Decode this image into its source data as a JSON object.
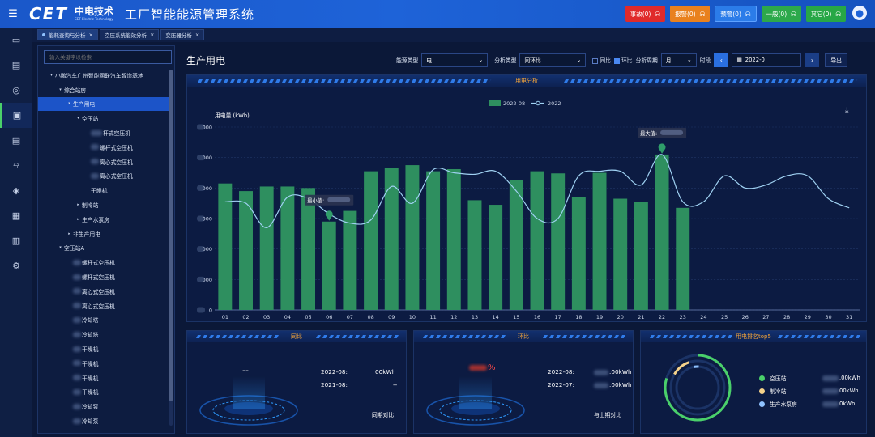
{
  "header": {
    "logo_mark": "CET",
    "logo_cn": "中电技术",
    "logo_en": "CET Electric Technology",
    "title": "工厂智能能源管理系统",
    "alarms": [
      {
        "label": "事故(0)",
        "color": "#e02a2a"
      },
      {
        "label": "报警(0)",
        "color": "#e9811e"
      },
      {
        "label": "预警(0)",
        "color": "#2b7ce9"
      },
      {
        "label": "一般(0)",
        "color": "#2da94b"
      },
      {
        "label": "其它(0)",
        "color": "#27a746"
      }
    ]
  },
  "tabs": [
    {
      "label": "能耗查询与分析"
    },
    {
      "label": "空压系统能效分析"
    },
    {
      "label": "变压器分析"
    }
  ],
  "tree": {
    "search_placeholder": "输入关键字以检索",
    "nodes": [
      {
        "label": "小鹏汽车广州智能网联汽车智造基地",
        "indent": 0,
        "arrow": "▾"
      },
      {
        "label": "综合站房",
        "indent": 1,
        "arrow": "▾"
      },
      {
        "label": "生产用电",
        "indent": 2,
        "arrow": "▾",
        "selected": true
      },
      {
        "label": "空压站",
        "indent": 3,
        "arrow": "▾"
      },
      {
        "label": "杆式空压机",
        "indent": 4,
        "arrow": "",
        "blur": 14
      },
      {
        "label": "螺杆式空压机",
        "indent": 4,
        "arrow": "",
        "blur": 10
      },
      {
        "label": "离心式空压机",
        "indent": 4,
        "arrow": "",
        "blur": 10
      },
      {
        "label": "离心式空压机",
        "indent": 4,
        "arrow": "",
        "blur": 10
      },
      {
        "label": "干燥机",
        "indent": 4,
        "arrow": ""
      },
      {
        "label": "制冷站",
        "indent": 3,
        "arrow": "▸"
      },
      {
        "label": "生产水泵房",
        "indent": 3,
        "arrow": "▸"
      },
      {
        "label": "非生产用电",
        "indent": 2,
        "arrow": "▸"
      },
      {
        "label": "空压站A",
        "indent": 1,
        "arrow": "▾"
      },
      {
        "label": "螺杆式空压机",
        "indent": 2,
        "arrow": "",
        "blur": 10
      },
      {
        "label": "螺杆式空压机",
        "indent": 2,
        "arrow": "",
        "blur": 10
      },
      {
        "label": "离心式空压机",
        "indent": 2,
        "arrow": "",
        "blur": 10
      },
      {
        "label": "离心式空压机",
        "indent": 2,
        "arrow": "",
        "blur": 10
      },
      {
        "label": "冷却塔",
        "indent": 2,
        "arrow": "",
        "blur": 10
      },
      {
        "label": "冷却塔",
        "indent": 2,
        "arrow": "",
        "blur": 10
      },
      {
        "label": "干燥机",
        "indent": 2,
        "arrow": "",
        "blur": 10
      },
      {
        "label": "干燥机",
        "indent": 2,
        "arrow": "",
        "blur": 10
      },
      {
        "label": "干燥机",
        "indent": 2,
        "arrow": "",
        "blur": 10
      },
      {
        "label": "干燥机",
        "indent": 2,
        "arrow": "",
        "blur": 10
      },
      {
        "label": "冷却泵",
        "indent": 2,
        "arrow": "",
        "blur": 10
      },
      {
        "label": "冷却泵",
        "indent": 2,
        "arrow": "",
        "blur": 10
      }
    ]
  },
  "main": {
    "title": "生产用电",
    "toolbar": {
      "energy_type_label": "能源类型",
      "energy_type_value": "电",
      "analysis_type_label": "分析类型",
      "analysis_type_value": "同环比",
      "yoy_label": "同比",
      "mom_label": "环比",
      "period_label": "分析周期",
      "period_value": "月",
      "time_label": "时段",
      "date_value": "2022-0",
      "export_label": "导出"
    },
    "chart_title": "用电分析",
    "yoy_title": "同比",
    "mom_title": "环比",
    "top_title": "用电排名top5"
  },
  "chart_data": {
    "type": "bar",
    "title": "",
    "ylabel": "用电量 (kWh)",
    "ylim": [
      0,
      6
    ],
    "yticks": [
      "0",
      "000",
      "000",
      "000",
      "000",
      "000",
      "000"
    ],
    "categories": [
      "01",
      "02",
      "03",
      "04",
      "05",
      "06",
      "07",
      "08",
      "09",
      "10",
      "11",
      "12",
      "13",
      "14",
      "15",
      "16",
      "17",
      "18",
      "19",
      "20",
      "21",
      "22",
      "23",
      "24",
      "25",
      "26",
      "27",
      "28",
      "29",
      "30",
      "31"
    ],
    "series": [
      {
        "name": "2022-08",
        "type": "bar",
        "color": "#2e8f5f",
        "values": [
          4.15,
          3.9,
          4.05,
          4.05,
          4.0,
          2.9,
          3.25,
          4.55,
          4.65,
          4.75,
          4.55,
          4.62,
          3.6,
          3.45,
          4.25,
          4.55,
          4.48,
          3.7,
          4.5,
          3.65,
          3.55,
          5.1,
          3.35,
          null,
          null,
          null,
          null,
          null,
          null,
          null,
          null
        ]
      },
      {
        "name": "2022",
        "type": "line",
        "color": "#9fd1f2",
        "values": [
          3.55,
          3.5,
          2.7,
          3.7,
          3.65,
          3.15,
          2.85,
          2.95,
          4.05,
          3.5,
          4.6,
          4.5,
          4.45,
          4.55,
          3.9,
          3.0,
          3.0,
          4.4,
          4.55,
          4.55,
          4.1,
          5.1,
          3.55,
          3.55,
          4.4,
          4.0,
          4.1,
          4.4,
          4.4,
          3.65,
          3.35
        ]
      }
    ],
    "annotations": [
      {
        "label": "最小值:",
        "category": "06"
      },
      {
        "label": "最大值:",
        "category": "22"
      }
    ]
  },
  "yoy": {
    "value": "--",
    "rows": [
      {
        "label": "2022-08:",
        "value": "00kWh"
      },
      {
        "label": "2021-08:",
        "value": "--"
      }
    ],
    "footer": "同期对比"
  },
  "mom": {
    "value": "%",
    "rows": [
      {
        "label": "2022-08:",
        "value": ".00kWh"
      },
      {
        "label": "2022-07:",
        "value": ".00kWh"
      }
    ],
    "footer": "与上期对比"
  },
  "top5": {
    "items": [
      {
        "label": "空压站",
        "value": ".00kWh",
        "color": "#4ad06a"
      },
      {
        "label": "制冷站",
        "value": "00kWh",
        "color": "#f5d28a"
      },
      {
        "label": "生产水泵房",
        "value": "0kWh",
        "color": "#8fc2ff"
      }
    ]
  }
}
